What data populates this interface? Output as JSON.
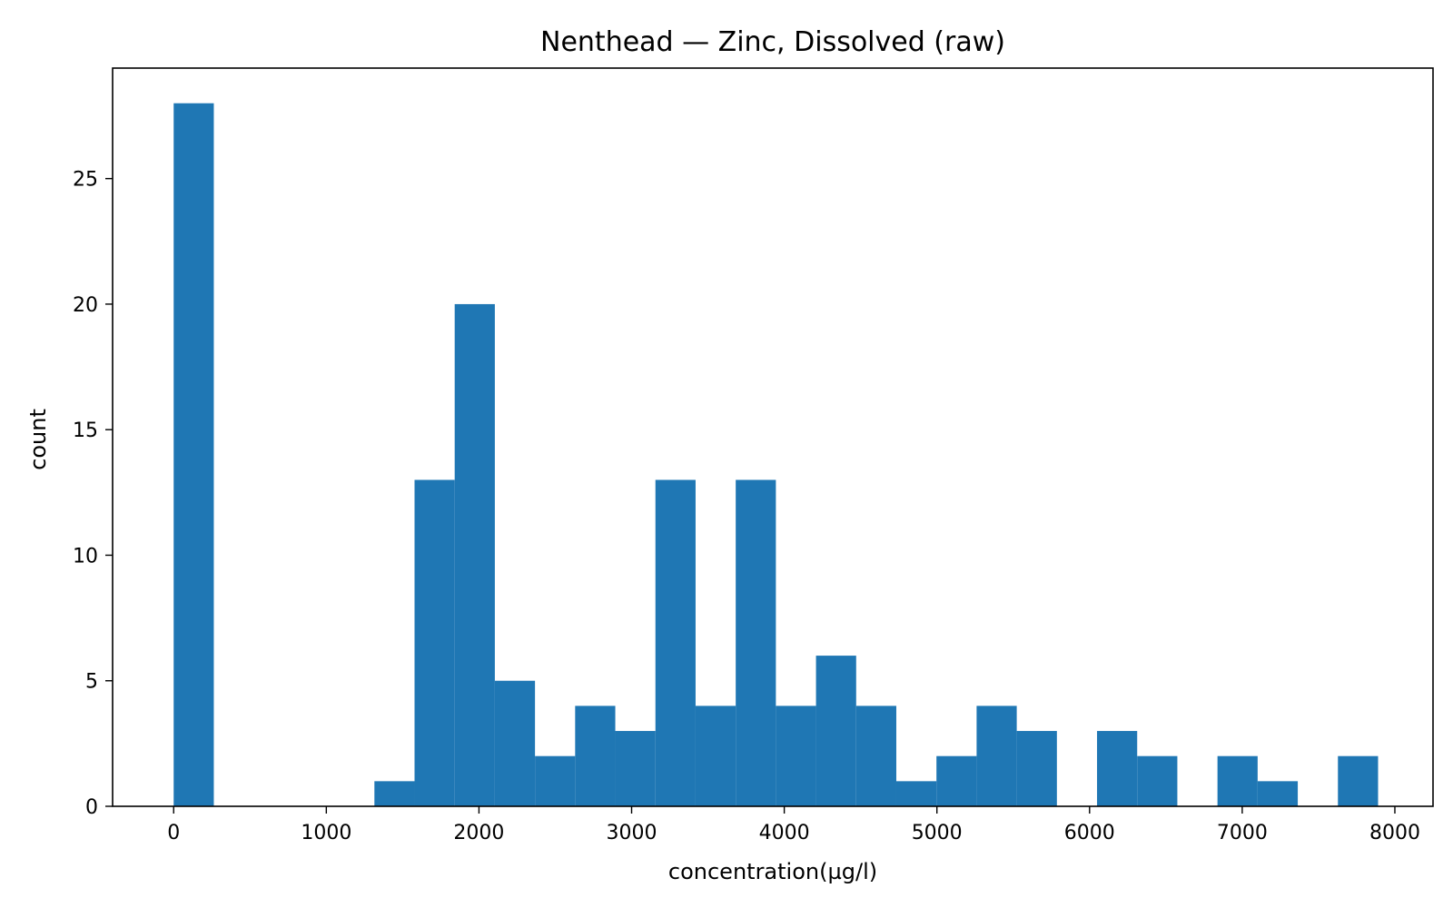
{
  "chart_data": {
    "type": "bar",
    "title": "Nenthead — Zinc, Dissolved (raw)",
    "xlabel": "concentration(µg/l)",
    "ylabel": "count",
    "xlim": [
      -400,
      8250
    ],
    "ylim": [
      0,
      29.4
    ],
    "grid": false,
    "bar_color": "#1f77b4",
    "bin_width": 263,
    "bins": [
      {
        "start": 0,
        "end": 263,
        "count": 28
      },
      {
        "start": 263,
        "end": 526,
        "count": 0
      },
      {
        "start": 526,
        "end": 789,
        "count": 0
      },
      {
        "start": 789,
        "end": 1052,
        "count": 0
      },
      {
        "start": 1052,
        "end": 1315,
        "count": 0
      },
      {
        "start": 1315,
        "end": 1578,
        "count": 1
      },
      {
        "start": 1578,
        "end": 1841,
        "count": 13
      },
      {
        "start": 1841,
        "end": 2104,
        "count": 20
      },
      {
        "start": 2104,
        "end": 2367,
        "count": 5
      },
      {
        "start": 2367,
        "end": 2630,
        "count": 2
      },
      {
        "start": 2630,
        "end": 2893,
        "count": 4
      },
      {
        "start": 2893,
        "end": 3156,
        "count": 3
      },
      {
        "start": 3156,
        "end": 3419,
        "count": 13
      },
      {
        "start": 3419,
        "end": 3682,
        "count": 4
      },
      {
        "start": 3682,
        "end": 3945,
        "count": 13
      },
      {
        "start": 3945,
        "end": 4208,
        "count": 4
      },
      {
        "start": 4208,
        "end": 4471,
        "count": 6
      },
      {
        "start": 4471,
        "end": 4734,
        "count": 4
      },
      {
        "start": 4734,
        "end": 4997,
        "count": 1
      },
      {
        "start": 4997,
        "end": 5260,
        "count": 2
      },
      {
        "start": 5260,
        "end": 5523,
        "count": 4
      },
      {
        "start": 5523,
        "end": 5786,
        "count": 3
      },
      {
        "start": 5786,
        "end": 6049,
        "count": 0
      },
      {
        "start": 6049,
        "end": 6312,
        "count": 3
      },
      {
        "start": 6312,
        "end": 6575,
        "count": 2
      },
      {
        "start": 6575,
        "end": 6838,
        "count": 0
      },
      {
        "start": 6838,
        "end": 7101,
        "count": 2
      },
      {
        "start": 7101,
        "end": 7364,
        "count": 1
      },
      {
        "start": 7364,
        "end": 7627,
        "count": 0
      },
      {
        "start": 7627,
        "end": 7890,
        "count": 2
      }
    ],
    "x_ticks": [
      0,
      1000,
      2000,
      3000,
      4000,
      5000,
      6000,
      7000,
      8000
    ],
    "x_tick_labels": [
      "0",
      "1000",
      "2000",
      "3000",
      "4000",
      "5000",
      "6000",
      "7000",
      "8000"
    ],
    "y_ticks": [
      0,
      5,
      10,
      15,
      20,
      25
    ],
    "y_tick_labels": [
      "0",
      "5",
      "10",
      "15",
      "20",
      "25"
    ]
  }
}
